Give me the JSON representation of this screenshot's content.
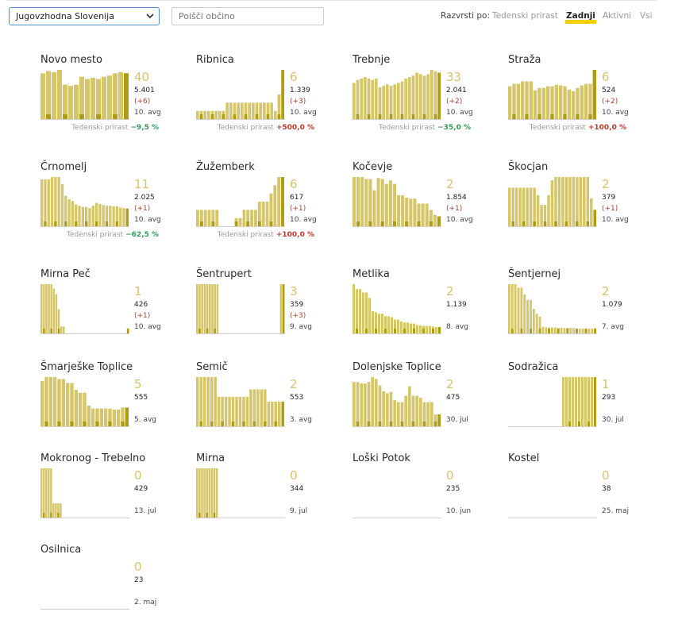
{
  "filter": {
    "region": "Jugovzhodna Slovenija",
    "search_placeholder": "Poišči občino"
  },
  "sort": {
    "label": "Razvrsti po:",
    "options": [
      "Tedenski prirast",
      "Zadnji",
      "Aktivni",
      "Vsi"
    ],
    "active": "Zadnji"
  },
  "colors": {
    "bar": "#d6c66a",
    "bar_dark": "#b09c12",
    "count": "#d8c36a",
    "increase": "#c0392b",
    "decrease": "#2f9a5a",
    "highlight": "#f7cf00"
  },
  "footer_label": "Tedenski prirast",
  "chart_data": [
    {
      "type": "bar",
      "title": "Novo mesto",
      "count": "40",
      "total": "5.401",
      "change": "(+6)",
      "avg": "10. avg",
      "weekly_growth": "−9,5 %",
      "weekly_trend": "down",
      "series": [
        {
          "values": [
            40,
            42,
            41,
            43,
            30,
            29,
            30,
            37,
            35,
            36,
            35,
            37,
            38,
            40,
            41,
            40
          ]
        }
      ],
      "ylim": [
        0,
        43
      ]
    },
    {
      "type": "bar",
      "title": "Ribnica",
      "count": "6",
      "total": "1.339",
      "change": "(+3)",
      "avg": "10. avg",
      "weekly_growth": "+500,0 %",
      "weekly_trend": "up",
      "series": [
        {
          "values": [
            1,
            1,
            1,
            1,
            1,
            1,
            1,
            1,
            2,
            2,
            2,
            2,
            2,
            2,
            2,
            2,
            2,
            2,
            2,
            2,
            2,
            1,
            3,
            6
          ]
        }
      ],
      "ylim": [
        0,
        6
      ]
    },
    {
      "type": "bar",
      "title": "Trebnje",
      "count": "33",
      "total": "2.041",
      "change": "(+2)",
      "avg": "10. avg",
      "weekly_growth": "−35,0 %",
      "weekly_trend": "down",
      "series": [
        {
          "values": [
            25,
            27,
            28,
            29,
            28,
            27,
            28,
            22,
            23,
            24,
            23,
            24,
            25,
            26,
            28,
            29,
            30,
            32,
            31,
            30,
            31,
            34,
            33,
            32
          ]
        }
      ],
      "ylim": [
        0,
        34
      ]
    },
    {
      "type": "bar",
      "title": "Straža",
      "count": "6",
      "total": "524",
      "change": "(+2)",
      "avg": "10. avg",
      "weekly_growth": "+100,0 %",
      "weekly_trend": "up",
      "series": [
        {
          "values": [
            4,
            4.3,
            4.3,
            4.6,
            4.6,
            4.6,
            3.5,
            3.8,
            3.8,
            4,
            4,
            4.2,
            4.1,
            4,
            3.6,
            3.4,
            3.8,
            4.1,
            4.3,
            4.3,
            6
          ]
        }
      ],
      "ylim": [
        0,
        6
      ]
    },
    {
      "type": "bar",
      "title": "Črnomelj",
      "count": "11",
      "total": "2.025",
      "change": "(+1)",
      "avg": "10. avg",
      "weekly_growth": "−62,5 %",
      "weekly_trend": "down",
      "series": [
        {
          "values": [
            8,
            8,
            8,
            8.4,
            8.4,
            8.4,
            7.2,
            5.2,
            4.6,
            4.3,
            3.7,
            3.5,
            3.3,
            3.3,
            3.1,
            3.5,
            4,
            3.8,
            3.6,
            3.5,
            3.5,
            3.4,
            3.4,
            3.2,
            3.1,
            3
          ]
        }
      ],
      "ylim": [
        0,
        8.4
      ]
    },
    {
      "type": "bar",
      "title": "Žužemberk",
      "count": "6",
      "total": "617",
      "change": "(+1)",
      "avg": "10. avg",
      "weekly_growth": "+100,0 %",
      "weekly_trend": "up",
      "series": [
        {
          "values": [
            2,
            2,
            2,
            2,
            2,
            2,
            0,
            0,
            0,
            0,
            1,
            1,
            2,
            2,
            2,
            2,
            3,
            3,
            3,
            4,
            5,
            6,
            6
          ]
        }
      ],
      "ylim": [
        0,
        6
      ]
    },
    {
      "type": "bar",
      "title": "Kočevje",
      "count": "2",
      "total": "1.854",
      "change": "(+1)",
      "avg": "10. avg",
      "weekly_growth": "",
      "weekly_trend": "",
      "series": [
        {
          "values": [
            10,
            10,
            10,
            9.6,
            9.6,
            7.3,
            9.8,
            9.6,
            8.6,
            9.3,
            8.6,
            6.3,
            6.3,
            5.8,
            5.6,
            5.6,
            4.6,
            4.6,
            4.6,
            3.3,
            2.3,
            2
          ]
        }
      ],
      "ylim": [
        0,
        10
      ]
    },
    {
      "type": "bar",
      "title": "Škocjan",
      "count": "2",
      "total": "379",
      "change": "(+1)",
      "avg": "10. avg",
      "weekly_growth": "",
      "weekly_trend": "",
      "series": [
        {
          "values": [
            2.35,
            2.35,
            2.35,
            2.35,
            2.35,
            2.35,
            2.35,
            2.35,
            1.9,
            1.3,
            1.3,
            1.9,
            2.8,
            3,
            3,
            3,
            3,
            3,
            3,
            3,
            3,
            3,
            3,
            1.7,
            1
          ]
        }
      ],
      "ylim": [
        0,
        3
      ]
    },
    {
      "type": "bar",
      "title": "Mirna Peč",
      "count": "1",
      "total": "426",
      "change": "(+1)",
      "avg": "10. avg",
      "weekly_growth": "",
      "weekly_trend": "",
      "series": [
        {
          "values": [
            10,
            10,
            10,
            10,
            10,
            9.1,
            8,
            4.9,
            1.4,
            1.4,
            0,
            0,
            0,
            0,
            0,
            0,
            0,
            0,
            0,
            0,
            0,
            0,
            0,
            0,
            0,
            0,
            0,
            0,
            0,
            0,
            0,
            0,
            0,
            0,
            0,
            1
          ]
        }
      ],
      "ylim": [
        0,
        10
      ]
    },
    {
      "type": "bar",
      "title": "Šentrupert",
      "count": "3",
      "total": "359",
      "change": "(+3)",
      "avg": "9. avg",
      "weekly_growth": "",
      "weekly_trend": "",
      "series": [
        {
          "values": [
            3,
            3,
            3,
            3,
            3,
            3,
            3,
            3,
            3,
            0,
            0,
            0,
            0,
            0,
            0,
            0,
            0,
            0,
            0,
            0,
            0,
            0,
            0,
            0,
            0,
            0,
            0,
            0,
            0,
            0,
            0,
            0,
            0,
            3,
            3
          ]
        }
      ],
      "ylim": [
        0,
        3
      ]
    },
    {
      "type": "bar",
      "title": "Metlika",
      "count": "2",
      "total": "1.139",
      "change": "",
      "avg": "8. avg",
      "weekly_growth": "",
      "weekly_trend": "",
      "series": [
        {
          "values": [
            10,
            9,
            9,
            8.3,
            8.3,
            7.2,
            4.5,
            4.3,
            4,
            4,
            3.5,
            3.5,
            3.3,
            2.8,
            2.8,
            2.4,
            2.2,
            2.2,
            2,
            2,
            1.7,
            1.6,
            1.5,
            1.5,
            1.5,
            1.4,
            1.3,
            1.3
          ]
        }
      ],
      "ylim": [
        0,
        10
      ]
    },
    {
      "type": "bar",
      "title": "Šentjernej",
      "count": "2",
      "total": "1.079",
      "change": "",
      "avg": "7. avg",
      "weekly_growth": "",
      "weekly_trend": "",
      "series": [
        {
          "values": [
            10,
            10,
            10,
            9.3,
            9.3,
            7.9,
            6.8,
            6.8,
            5,
            4,
            3.4,
            1.3,
            1.2,
            1.2,
            1.2,
            1.2,
            1.1,
            1.1,
            1.1,
            1.1,
            1.1,
            1.1,
            1,
            1,
            1,
            1,
            1,
            1,
            1
          ]
        }
      ],
      "ylim": [
        0,
        10
      ]
    },
    {
      "type": "bar",
      "title": "Šmarješke Toplice",
      "count": "5",
      "total": "555",
      "change": "",
      "avg": "5. avg",
      "weekly_growth": "",
      "weekly_trend": "",
      "series": [
        {
          "values": [
            4.6,
            5,
            5,
            5,
            4.8,
            4.8,
            4.4,
            4.4,
            3.7,
            3.4,
            3.4,
            2.1,
            1.8,
            1.8,
            1.8,
            1.8,
            1.8,
            1.7,
            1.7,
            1.9,
            1.9
          ]
        }
      ],
      "ylim": [
        0,
        5
      ]
    },
    {
      "type": "bar",
      "title": "Semič",
      "count": "2",
      "total": "553",
      "change": "",
      "avg": "3. avg",
      "weekly_growth": "",
      "weekly_trend": "",
      "series": [
        {
          "values": [
            4,
            4,
            4,
            4,
            4,
            4,
            2.4,
            2.4,
            2.4,
            2.4,
            2.4,
            2.4,
            2.4,
            2.4,
            2.4,
            3,
            3,
            3,
            3,
            3,
            2,
            2,
            2,
            2,
            2
          ]
        }
      ],
      "ylim": [
        0,
        4
      ]
    },
    {
      "type": "bar",
      "title": "Dolenjske Toplice",
      "count": "2",
      "total": "475",
      "change": "",
      "avg": "30. jul",
      "weekly_growth": "",
      "weekly_trend": "",
      "series": [
        {
          "values": [
            9,
            9,
            8.7,
            8.7,
            9,
            10,
            9.6,
            8.3,
            7.1,
            6.7,
            7,
            5.3,
            4.9,
            4.9,
            6.2,
            8.1,
            6.2,
            6.2,
            5.8,
            4.9,
            4.9,
            4.9,
            2.4,
            2.4
          ]
        }
      ],
      "ylim": [
        0,
        10
      ]
    },
    {
      "type": "bar",
      "title": "Sodražica",
      "count": "1",
      "total": "293",
      "change": "",
      "avg": "30. jul",
      "weekly_growth": "",
      "weekly_trend": "",
      "series": [
        {
          "values": [
            0,
            0,
            0,
            0,
            0,
            0,
            0,
            0,
            0,
            0,
            0,
            0,
            0,
            0,
            0,
            0,
            0,
            1,
            1,
            1,
            1,
            1,
            1,
            1,
            1,
            1,
            1,
            1
          ]
        }
      ],
      "ylim": [
        0,
        1
      ]
    },
    {
      "type": "bar",
      "title": "Mokronog - Trebelno",
      "count": "0",
      "total": "429",
      "change": "",
      "avg": "13. jul",
      "weekly_growth": "",
      "weekly_trend": "",
      "series": [
        {
          "values": [
            10,
            10,
            10,
            10,
            10,
            2.9,
            2.9,
            2.9,
            2.9,
            0,
            0,
            0,
            0,
            0,
            0,
            0,
            0,
            0,
            0,
            0,
            0,
            0,
            0,
            0,
            0,
            0,
            0,
            0,
            0,
            0,
            0,
            0,
            0,
            0,
            0,
            0,
            0
          ]
        }
      ],
      "ylim": [
        0,
        10
      ]
    },
    {
      "type": "bar",
      "title": "Mirna",
      "count": "0",
      "total": "344",
      "change": "",
      "avg": "9. jul",
      "weekly_growth": "",
      "weekly_trend": "",
      "series": [
        {
          "values": [
            1,
            1,
            1,
            1,
            1,
            1,
            1,
            1,
            1,
            0,
            0,
            0,
            0,
            0,
            0,
            0,
            0,
            0,
            0,
            0,
            0,
            0,
            0,
            0,
            0,
            0,
            0,
            0,
            0,
            0,
            0,
            0,
            0,
            0,
            0,
            0
          ]
        }
      ],
      "ylim": [
        0,
        1
      ]
    },
    {
      "type": "bar",
      "title": "Loški Potok",
      "count": "0",
      "total": "235",
      "change": "",
      "avg": "10. jun",
      "weekly_growth": "",
      "weekly_trend": "",
      "series": [
        {
          "values": [
            0,
            0,
            0,
            0,
            0,
            0,
            0,
            0,
            0,
            0,
            0,
            0,
            0,
            0,
            0,
            0,
            0,
            0,
            0,
            0
          ]
        }
      ],
      "ylim": [
        0,
        1
      ]
    },
    {
      "type": "bar",
      "title": "Kostel",
      "count": "0",
      "total": "38",
      "change": "",
      "avg": "25. maj",
      "weekly_growth": "",
      "weekly_trend": "",
      "series": [
        {
          "values": [
            0,
            0,
            0,
            0,
            0,
            0,
            0,
            0,
            0,
            0,
            0,
            0,
            0,
            0,
            0,
            0,
            0,
            0,
            0,
            0
          ]
        }
      ],
      "ylim": [
        0,
        1
      ]
    },
    {
      "type": "bar",
      "title": "Osilnica",
      "count": "0",
      "total": "23",
      "change": "",
      "avg": "2. maj",
      "weekly_growth": "",
      "weekly_trend": "",
      "series": [
        {
          "values": [
            0,
            0,
            0,
            0,
            0,
            0,
            0,
            0,
            0,
            0,
            0,
            0,
            0,
            0,
            0,
            0,
            0,
            0,
            0,
            0
          ]
        }
      ],
      "ylim": [
        0,
        1
      ]
    }
  ]
}
